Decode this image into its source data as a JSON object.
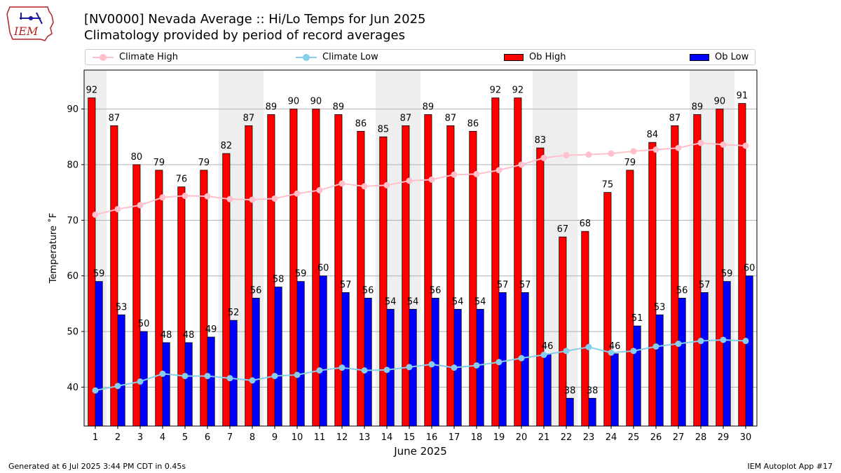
{
  "header": {
    "title_line1": "[NV0000] Nevada Average :: Hi/Lo Temps for Jun 2025",
    "title_line2": "Climatology provided by period of record averages",
    "logo_text": "IEM"
  },
  "legend": {
    "items": [
      {
        "label": "Climate High",
        "kind": "line",
        "color": "#ffc0cb"
      },
      {
        "label": "Climate Low",
        "kind": "line",
        "color": "#87ceeb"
      },
      {
        "label": "Ob High",
        "kind": "bar",
        "color": "#ff0000"
      },
      {
        "label": "Ob Low",
        "kind": "bar",
        "color": "#0000ff"
      }
    ],
    "placement": "top"
  },
  "chart_data": {
    "type": "bar",
    "title": "[NV0000] Nevada Average :: Hi/Lo Temps for Jun 2025",
    "subtitle": "Climatology provided by period of record averages",
    "xlabel": "June 2025",
    "ylabel": "Temperature $^\\circ$F",
    "ylabel_display": "Temperature ˚F",
    "ylim": [
      33,
      97
    ],
    "yticks": [
      40,
      50,
      60,
      70,
      80,
      90
    ],
    "grid": true,
    "categories": [
      "1",
      "2",
      "3",
      "4",
      "5",
      "6",
      "7",
      "8",
      "9",
      "10",
      "11",
      "12",
      "13",
      "14",
      "15",
      "16",
      "17",
      "18",
      "19",
      "20",
      "21",
      "22",
      "23",
      "24",
      "25",
      "26",
      "27",
      "28",
      "29",
      "30"
    ],
    "weekend_shading_days": [
      1,
      7,
      8,
      14,
      15,
      21,
      22,
      28,
      29
    ],
    "series": [
      {
        "name": "Ob High",
        "kind": "bar",
        "color": "#ff0000",
        "values": [
          92,
          87,
          80,
          79,
          76,
          79,
          82,
          87,
          89,
          90,
          90,
          89,
          86,
          85,
          87,
          89,
          87,
          86,
          92,
          92,
          83,
          67,
          68,
          75,
          79,
          84,
          87,
          89,
          90,
          91
        ]
      },
      {
        "name": "Ob Low",
        "kind": "bar",
        "color": "#0000ff",
        "values": [
          59,
          53,
          50,
          48,
          48,
          49,
          52,
          56,
          58,
          59,
          60,
          57,
          56,
          54,
          54,
          56,
          54,
          54,
          57,
          57,
          46,
          38,
          38,
          46,
          51,
          53,
          56,
          57,
          59,
          60
        ]
      },
      {
        "name": "Climate High",
        "kind": "line",
        "color": "#ffc0cb",
        "values": [
          71.0,
          72.0,
          72.7,
          74.1,
          74.4,
          74.3,
          73.8,
          73.7,
          73.9,
          74.8,
          75.4,
          76.6,
          76.1,
          76.3,
          77.1,
          77.3,
          78.2,
          78.3,
          79.0,
          80.0,
          81.2,
          81.7,
          81.8,
          82.0,
          82.4,
          82.7,
          83.0,
          83.9,
          83.6,
          83.4
        ]
      },
      {
        "name": "Climate Low",
        "kind": "line",
        "color": "#87ceeb",
        "values": [
          39.4,
          40.2,
          41.0,
          42.4,
          42.0,
          42.0,
          41.6,
          41.2,
          42.0,
          42.2,
          43.0,
          43.5,
          43.0,
          43.1,
          43.6,
          44.1,
          43.5,
          43.9,
          44.5,
          45.2,
          45.8,
          46.5,
          47.2,
          46.2,
          46.5,
          47.3,
          47.8,
          48.3,
          48.5,
          48.3
        ]
      }
    ]
  },
  "footer": {
    "left": "Generated at 6 Jul 2025 3:44 PM CDT in 0.45s",
    "right": "IEM Autoplot App #17"
  }
}
